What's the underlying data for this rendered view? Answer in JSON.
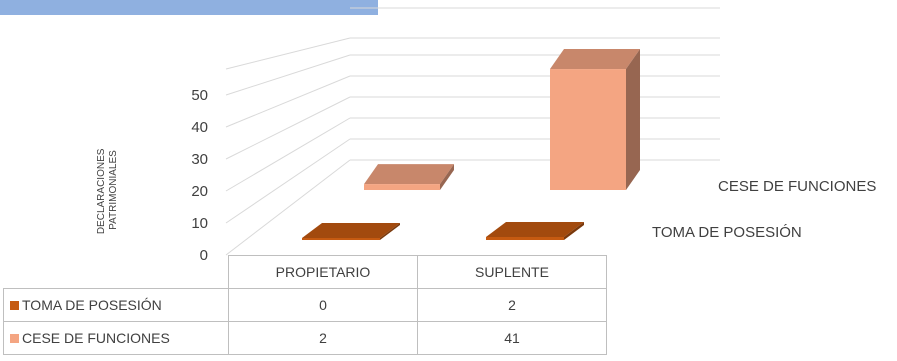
{
  "chart_data": {
    "type": "bar",
    "style": "3d-clustered-column",
    "title": "",
    "ylabel": "DECLARACIONES PATRIMONIALES",
    "xlabel": "",
    "ylim": [
      0,
      50
    ],
    "yticks": [
      "0",
      "10",
      "20",
      "30",
      "40",
      "50"
    ],
    "categories": [
      "PROPIETARIO",
      "SUPLENTE"
    ],
    "series": [
      {
        "name": "TOMA DE POSESIÓN",
        "values": [
          0,
          2
        ],
        "color": "#c55a11"
      },
      {
        "name": "CESE DE FUNCIONES",
        "values": [
          2,
          41
        ],
        "color": "#f4a582"
      }
    ],
    "legend": "data-table"
  },
  "table": {
    "headers": [
      "PROPIETARIO",
      "SUPLENTE"
    ],
    "rows": [
      {
        "label": "TOMA DE POSESIÓN",
        "values": [
          "0",
          "2"
        ]
      },
      {
        "label": "CESE DE FUNCIONES",
        "values": [
          "2",
          "41"
        ]
      }
    ]
  }
}
